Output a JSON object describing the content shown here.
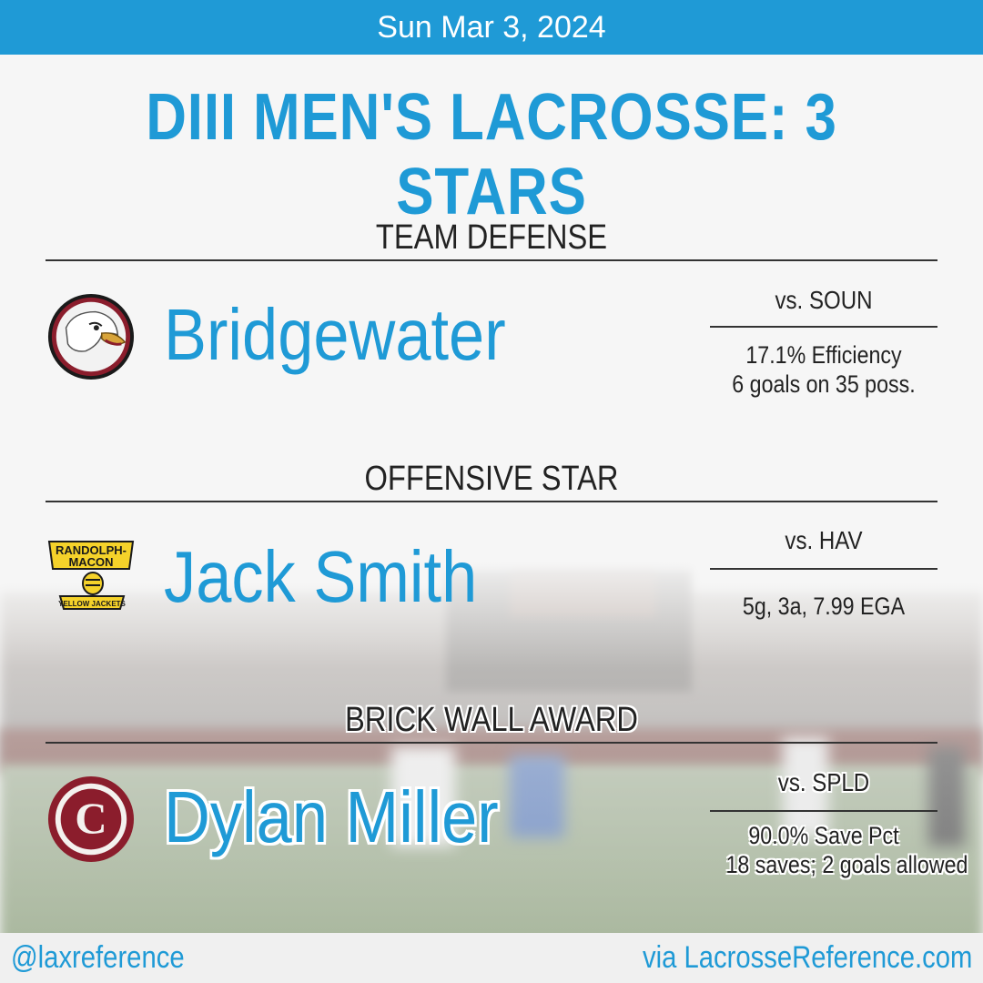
{
  "header": {
    "date": "Sun Mar 3, 2024"
  },
  "title": "DIII MEN'S LACROSSE: 3 STARS",
  "sections": [
    {
      "heading": "TEAM DEFENSE",
      "logo_icon": "bridgewater-eagle-logo",
      "name": "Bridgewater",
      "opponent": "vs. SOUN",
      "stat_line1": "17.1% Efficiency",
      "stat_line2": "6 goals on 35 poss."
    },
    {
      "heading": "OFFENSIVE STAR",
      "logo_icon": "randolph-macon-yellow-jackets-logo",
      "logo_text_top": "RANDOLPH-",
      "logo_text_mid": "MACON",
      "logo_text_bottom": "YELLOW JACKETS",
      "name": "Jack Smith",
      "opponent": "vs. HAV",
      "stat_line1": "5g, 3a, 7.99 EGA"
    },
    {
      "heading": "BRICK WALL AWARD",
      "logo_icon": "c-letter-logo",
      "logo_letter": "C",
      "name": "Dylan Miller",
      "opponent": "vs. SPLD",
      "stat_line1": "90.0% Save Pct",
      "stat_line2": "18 saves; 2 goals allowed"
    }
  ],
  "footer": {
    "handle": "@laxreference",
    "site": "via LacrosseReference.com"
  },
  "colors": {
    "accent": "#1f9ad6",
    "maroon": "#8b1d2c"
  }
}
